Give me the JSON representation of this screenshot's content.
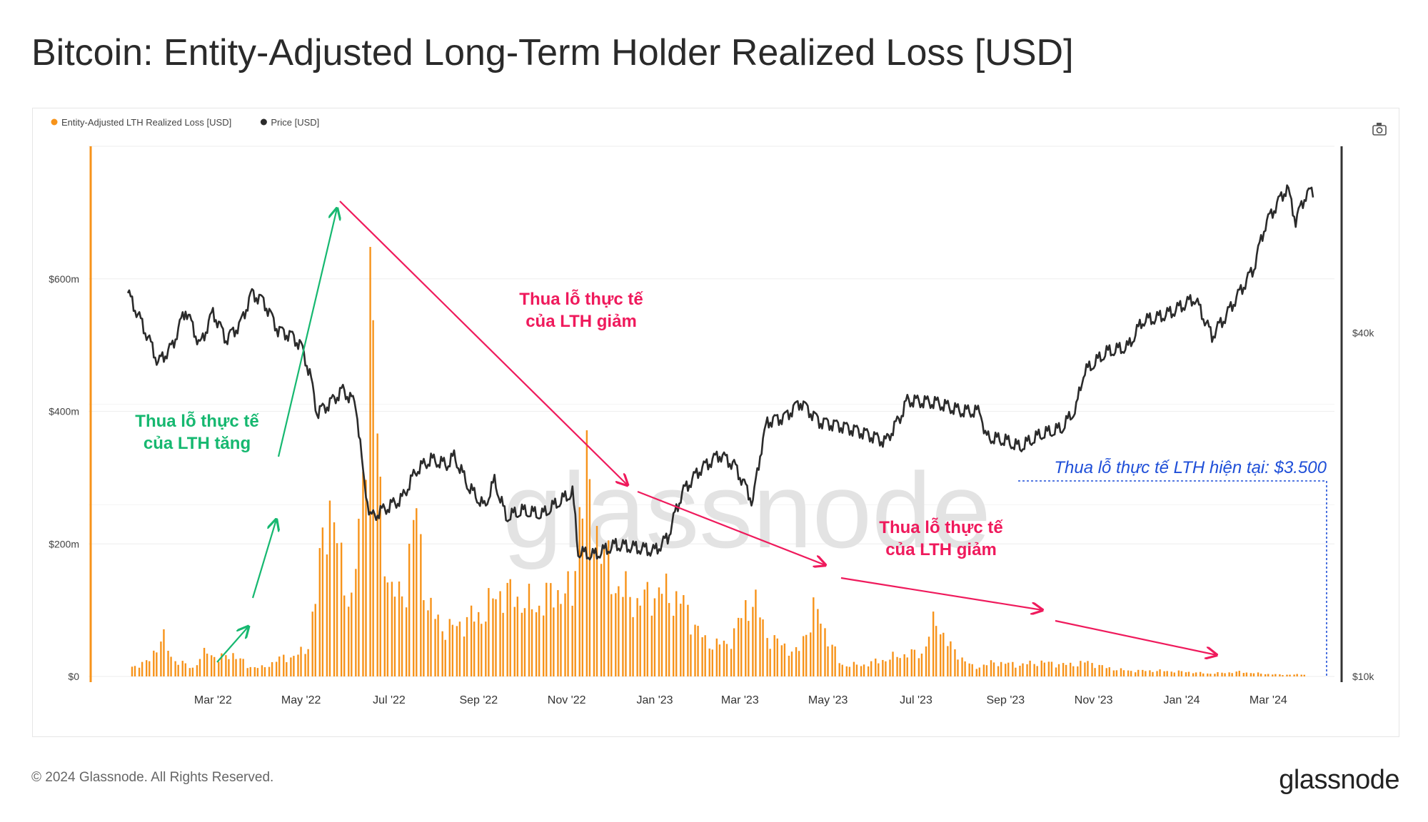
{
  "header": {
    "title": "Bitcoin: Entity-Adjusted Long-Term Holder Realized Loss [USD]"
  },
  "footer": {
    "copyright": "© 2024 Glassnode. All Rights Reserved.",
    "logo": "glassnode"
  },
  "watermark": "glassnode",
  "colors": {
    "loss": "#f7931a",
    "price": "#2b2b2b",
    "green": "#16b870",
    "red": "#ef1a5c",
    "blue": "#1f4fd8"
  },
  "icons": {
    "camera": "camera-icon"
  },
  "chart_data": {
    "type": "bar+line",
    "title": "Bitcoin: Entity-Adjusted Long-Term Holder Realized Loss [USD]",
    "legend": [
      {
        "name": "Entity-Adjusted LTH Realized Loss [USD]",
        "color": "#f7931a"
      },
      {
        "name": "Price [USD]",
        "color": "#2b2b2b"
      }
    ],
    "legend_position": "top-left",
    "x_ticks": [
      "Mar '22",
      "May '22",
      "Jul '22",
      "Sep '22",
      "Nov '22",
      "Jan '23",
      "Mar '23",
      "May '23",
      "Jul '23",
      "Sep '23",
      "Nov '23",
      "Jan '24",
      "Mar '24"
    ],
    "x_range": [
      "2022-01-01",
      "2024-04-01"
    ],
    "y_left": {
      "ticks": [
        "$0",
        "$200m",
        "$400m",
        "$600m"
      ],
      "range": [
        0,
        800
      ],
      "unit": "USD millions"
    },
    "y_right": {
      "ticks": [
        "$10k",
        "$40k"
      ],
      "scale": "log",
      "range": [
        10000,
        85000
      ]
    },
    "grid": true,
    "series_loss": [
      [
        "2022-01-01",
        15
      ],
      [
        "2022-01-15",
        25
      ],
      [
        "2022-01-25",
        70
      ],
      [
        "2022-02-01",
        30
      ],
      [
        "2022-02-15",
        15
      ],
      [
        "2022-02-25",
        45
      ],
      [
        "2022-03-05",
        30
      ],
      [
        "2022-03-15",
        40
      ],
      [
        "2022-03-25",
        18
      ],
      [
        "2022-04-05",
        15
      ],
      [
        "2022-04-15",
        30
      ],
      [
        "2022-04-25",
        35
      ],
      [
        "2022-05-05",
        45
      ],
      [
        "2022-05-12",
        150
      ],
      [
        "2022-05-20",
        320
      ],
      [
        "2022-05-28",
        200
      ],
      [
        "2022-06-05",
        130
      ],
      [
        "2022-06-12",
        280
      ],
      [
        "2022-06-18",
        700
      ],
      [
        "2022-06-25",
        300
      ],
      [
        "2022-07-02",
        140
      ],
      [
        "2022-07-12",
        150
      ],
      [
        "2022-07-20",
        290
      ],
      [
        "2022-07-28",
        120
      ],
      [
        "2022-08-10",
        80
      ],
      [
        "2022-08-25",
        100
      ],
      [
        "2022-09-05",
        110
      ],
      [
        "2022-09-15",
        150
      ],
      [
        "2022-09-25",
        140
      ],
      [
        "2022-10-10",
        120
      ],
      [
        "2022-10-25",
        150
      ],
      [
        "2022-11-05",
        140
      ],
      [
        "2022-11-10",
        300
      ],
      [
        "2022-11-15",
        345
      ],
      [
        "2022-11-25",
        220
      ],
      [
        "2022-12-05",
        160
      ],
      [
        "2022-12-20",
        130
      ],
      [
        "2023-01-05",
        150
      ],
      [
        "2023-01-20",
        130
      ],
      [
        "2023-02-05",
        60
      ],
      [
        "2023-02-20",
        55
      ],
      [
        "2023-03-10",
        140
      ],
      [
        "2023-03-20",
        70
      ],
      [
        "2023-04-10",
        40
      ],
      [
        "2023-04-22",
        120
      ],
      [
        "2023-05-10",
        20
      ],
      [
        "2023-05-25",
        20
      ],
      [
        "2023-06-10",
        30
      ],
      [
        "2023-06-25",
        40
      ],
      [
        "2023-07-05",
        40
      ],
      [
        "2023-07-15",
        100
      ],
      [
        "2023-07-25",
        50
      ],
      [
        "2023-08-10",
        15
      ],
      [
        "2023-08-25",
        25
      ],
      [
        "2023-09-10",
        20
      ],
      [
        "2023-09-25",
        25
      ],
      [
        "2023-10-15",
        20
      ],
      [
        "2023-10-28",
        25
      ],
      [
        "2023-11-10",
        15
      ],
      [
        "2023-11-25",
        10
      ],
      [
        "2023-12-15",
        10
      ],
      [
        "2024-01-05",
        8
      ],
      [
        "2024-01-20",
        5
      ],
      [
        "2024-02-10",
        8
      ],
      [
        "2024-02-25",
        5
      ],
      [
        "2024-03-10",
        3
      ],
      [
        "2024-03-25",
        3.5
      ]
    ],
    "series_price": [
      [
        "2022-01-01",
        47000
      ],
      [
        "2022-01-10",
        42000
      ],
      [
        "2022-01-22",
        35500
      ],
      [
        "2022-02-01",
        38000
      ],
      [
        "2022-02-10",
        44000
      ],
      [
        "2022-02-20",
        38000
      ],
      [
        "2022-03-01",
        43500
      ],
      [
        "2022-03-10",
        39000
      ],
      [
        "2022-03-20",
        41500
      ],
      [
        "2022-03-28",
        47000
      ],
      [
        "2022-04-05",
        45500
      ],
      [
        "2022-04-15",
        40500
      ],
      [
        "2022-04-25",
        39500
      ],
      [
        "2022-05-01",
        38000
      ],
      [
        "2022-05-07",
        34000
      ],
      [
        "2022-05-12",
        29000
      ],
      [
        "2022-05-20",
        30000
      ],
      [
        "2022-05-30",
        31800
      ],
      [
        "2022-06-08",
        30000
      ],
      [
        "2022-06-13",
        22500
      ],
      [
        "2022-06-18",
        19000
      ],
      [
        "2022-06-30",
        19800
      ],
      [
        "2022-07-10",
        20500
      ],
      [
        "2022-07-20",
        23000
      ],
      [
        "2022-07-30",
        24000
      ],
      [
        "2022-08-10",
        23500
      ],
      [
        "2022-08-15",
        24300
      ],
      [
        "2022-08-25",
        21500
      ],
      [
        "2022-09-05",
        19800
      ],
      [
        "2022-09-12",
        22000
      ],
      [
        "2022-09-20",
        19000
      ],
      [
        "2022-10-01",
        19500
      ],
      [
        "2022-10-15",
        19200
      ],
      [
        "2022-10-30",
        20500
      ],
      [
        "2022-11-05",
        21000
      ],
      [
        "2022-11-09",
        16500
      ],
      [
        "2022-11-20",
        16300
      ],
      [
        "2022-12-05",
        17000
      ],
      [
        "2022-12-20",
        16800
      ],
      [
        "2023-01-01",
        16600
      ],
      [
        "2023-01-10",
        17500
      ],
      [
        "2023-01-20",
        21000
      ],
      [
        "2023-02-01",
        23000
      ],
      [
        "2023-02-15",
        24500
      ],
      [
        "2023-02-25",
        23500
      ],
      [
        "2023-03-10",
        20200
      ],
      [
        "2023-03-15",
        24500
      ],
      [
        "2023-03-20",
        28000
      ],
      [
        "2023-04-01",
        28500
      ],
      [
        "2023-04-12",
        30300
      ],
      [
        "2023-04-25",
        28000
      ],
      [
        "2023-05-10",
        27500
      ],
      [
        "2023-05-25",
        26800
      ],
      [
        "2023-06-10",
        25800
      ],
      [
        "2023-06-20",
        28500
      ],
      [
        "2023-06-25",
        30500
      ],
      [
        "2023-07-15",
        30200
      ],
      [
        "2023-08-01",
        29200
      ],
      [
        "2023-08-15",
        29100
      ],
      [
        "2023-08-18",
        26300
      ],
      [
        "2023-09-01",
        25900
      ],
      [
        "2023-09-11",
        25200
      ],
      [
        "2023-09-25",
        26500
      ],
      [
        "2023-10-10",
        27200
      ],
      [
        "2023-10-20",
        29500
      ],
      [
        "2023-10-25",
        34000
      ],
      [
        "2023-11-10",
        37000
      ],
      [
        "2023-11-25",
        37800
      ],
      [
        "2023-12-05",
        42000
      ],
      [
        "2023-12-15",
        42500
      ],
      [
        "2023-12-25",
        43500
      ],
      [
        "2024-01-10",
        46000
      ],
      [
        "2024-01-22",
        39500
      ],
      [
        "2024-02-01",
        43000
      ],
      [
        "2024-02-12",
        48000
      ],
      [
        "2024-02-20",
        52000
      ],
      [
        "2024-02-28",
        62000
      ],
      [
        "2024-03-05",
        66000
      ],
      [
        "2024-03-14",
        72000
      ],
      [
        "2024-03-20",
        63000
      ],
      [
        "2024-03-27",
        70000
      ],
      [
        "2024-04-01",
        71000
      ]
    ],
    "annotations": [
      {
        "text": [
          "Thua lỗ thực tế",
          "của LTH tăng"
        ],
        "color": "#16b870"
      },
      {
        "text": [
          "Thua lỗ thực tế",
          "của LTH giảm"
        ],
        "color": "#ef1a5c"
      },
      {
        "text": [
          "Thua lỗ thực tế",
          "của LTH giảm"
        ],
        "color": "#ef1a5c"
      },
      {
        "text": [
          "Thua lỗ thực tế LTH hiện tại: $3.500"
        ],
        "color": "#1f4fd8"
      }
    ]
  }
}
